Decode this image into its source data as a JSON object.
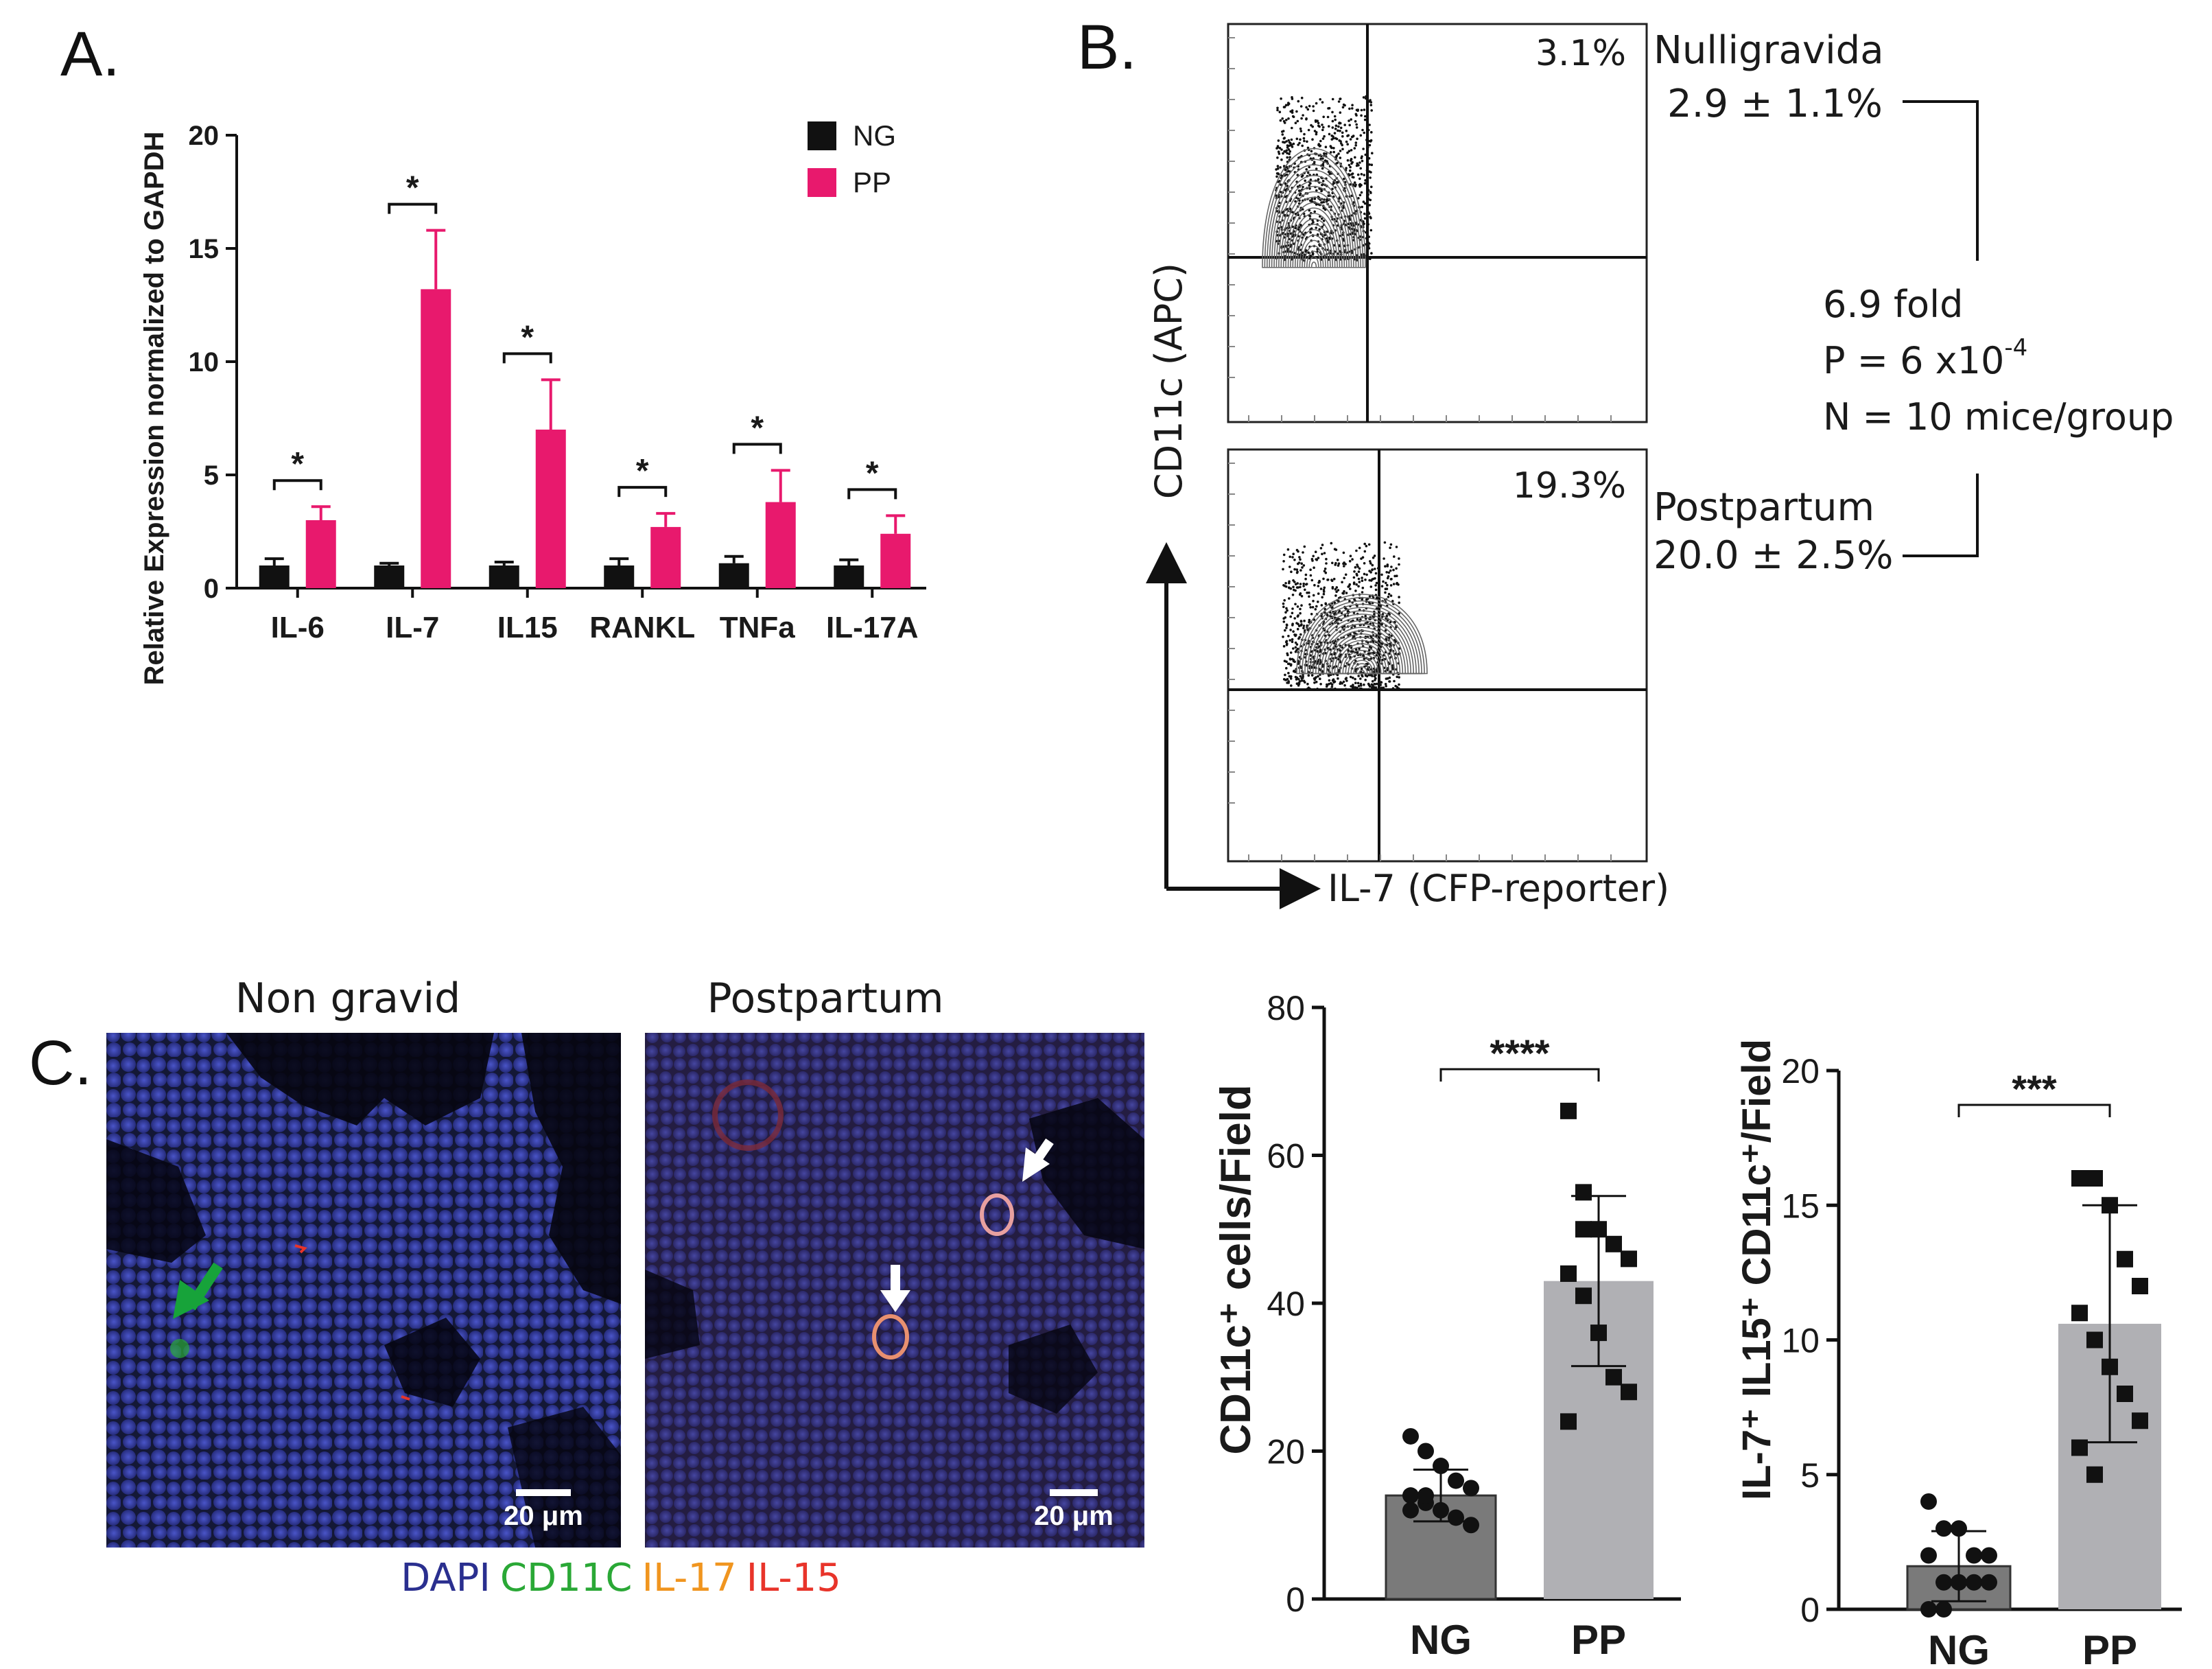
{
  "panels": {
    "a": "A.",
    "b": "B.",
    "c": "C."
  },
  "colors": {
    "ng": "#111111",
    "pp": "#e8196d",
    "ng_gray": "#7a7a7a",
    "pp_gray": "#b0b0b4",
    "dapi": "#2a2f8f",
    "cd11c": "#2aa836",
    "il17": "#f0951f",
    "il15": "#e8342a"
  },
  "chart_data": [
    {
      "id": "panelA",
      "type": "bar",
      "title": "",
      "ylabel": "Relative Expression normalized to GAPDH",
      "xlabel": "",
      "ylim": [
        0,
        20
      ],
      "yticks": [
        "0",
        "5",
        "10",
        "15",
        "20"
      ],
      "categories": [
        "IL-6",
        "IL-7",
        "IL15",
        "RANKL",
        "TNFa",
        "IL-17A"
      ],
      "series": [
        {
          "name": "NG",
          "values": [
            1.0,
            1.0,
            1.0,
            1.0,
            1.1,
            1.0
          ],
          "errors": [
            0.3,
            0.1,
            0.15,
            0.3,
            0.3,
            0.25
          ]
        },
        {
          "name": "PP",
          "values": [
            3.0,
            13.2,
            7.0,
            2.7,
            3.8,
            2.4
          ],
          "errors": [
            0.6,
            2.6,
            2.2,
            0.6,
            1.4,
            0.8
          ]
        }
      ],
      "significance": [
        "*",
        "*",
        "*",
        "*",
        "*",
        "*"
      ],
      "legend": [
        "NG",
        "PP"
      ],
      "legend_position": "top-right"
    },
    {
      "id": "panelC_left",
      "type": "bar",
      "ylabel": "CD11c⁺ cells/Field",
      "ylim": [
        0,
        80
      ],
      "yticks": [
        "0",
        "20",
        "40",
        "60",
        "80"
      ],
      "categories": [
        "NG",
        "PP"
      ],
      "values": [
        14,
        43
      ],
      "errors": [
        3.5,
        11.5
      ],
      "points": [
        [
          22,
          20,
          18,
          16,
          15,
          14,
          13,
          12,
          11,
          10,
          12,
          14
        ],
        [
          66,
          55,
          50,
          48,
          46,
          44,
          41,
          36,
          30,
          28,
          24,
          50
        ]
      ],
      "significance": "****"
    },
    {
      "id": "panelC_right",
      "type": "bar",
      "ylabel": "IL-7⁺ IL15⁺ CD11c⁺/Field",
      "ylim": [
        0,
        20
      ],
      "yticks": [
        "0",
        "5",
        "10",
        "15",
        "20"
      ],
      "categories": [
        "NG",
        "PP"
      ],
      "values": [
        1.6,
        10.6
      ],
      "errors": [
        1.3,
        4.4
      ],
      "points": [
        [
          4,
          3,
          3,
          2,
          2,
          2,
          1,
          1,
          1,
          1,
          0,
          0
        ],
        [
          16,
          16,
          15,
          13,
          12,
          11,
          10,
          9,
          8,
          7,
          6,
          5
        ]
      ],
      "significance": "***"
    }
  ],
  "flow": {
    "y_axis_label": "CD11c (APC)",
    "x_axis_label": "IL-7 (CFP-reporter)",
    "top_percent": "3.1%",
    "bottom_percent": "19.3%",
    "nulligravida_label": "Nulligravida",
    "nulligravida_value": "2.9 ± 1.1%",
    "postpartum_label": "Postpartum",
    "postpartum_value": "20.0 ± 2.5%",
    "fold": "6.9 fold",
    "p_value_prefix": "P = 6 x10",
    "p_value_exp": "-4",
    "n_text": "N = 10 mice/group"
  },
  "micrographs": {
    "left_title": "Non gravid",
    "right_title": "Postpartum",
    "scale_left": "20 μm",
    "scale_right": "20 μm",
    "legend_dapi": "DAPI",
    "legend_cd11c": "CD11C",
    "legend_il17": "IL-17",
    "legend_il15": "IL-15"
  }
}
